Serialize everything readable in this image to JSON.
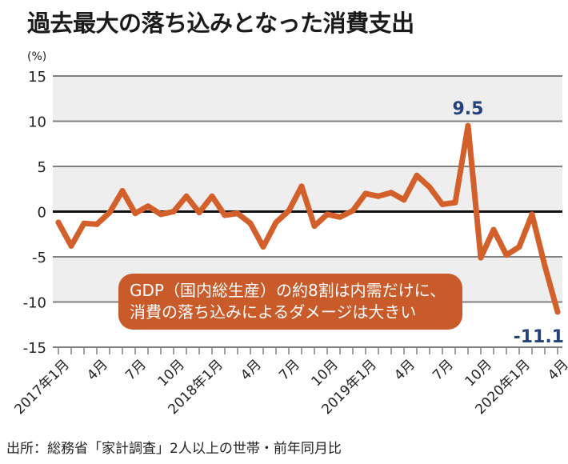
{
  "title": "過去最大の落ち込みとなった消費支出",
  "source": "出所：総務省「家計調査」2人以上の世帯・前年同月比",
  "colors": {
    "line": "#d3602a",
    "band": "#eeeeee",
    "grid": "#808080",
    "zero": "#111111",
    "annotation": "#23417a",
    "note_bg": "#c95a2a"
  },
  "chart_data": {
    "type": "line",
    "title": "過去最大の落ち込みとなった消費支出",
    "ylabel": "(%)",
    "xlabel": "",
    "ylim": [
      -15,
      15
    ],
    "yticks": [
      15,
      10,
      5,
      0,
      -5,
      -10,
      -15
    ],
    "ytick_labels": [
      "15",
      "10",
      "5",
      "0",
      "-5",
      "-10",
      "-15"
    ],
    "grid": true,
    "x": [
      "2017-01",
      "2017-02",
      "2017-03",
      "2017-04",
      "2017-05",
      "2017-06",
      "2017-07",
      "2017-08",
      "2017-09",
      "2017-10",
      "2017-11",
      "2017-12",
      "2018-01",
      "2018-02",
      "2018-03",
      "2018-04",
      "2018-05",
      "2018-06",
      "2018-07",
      "2018-08",
      "2018-09",
      "2018-10",
      "2018-11",
      "2018-12",
      "2019-01",
      "2019-02",
      "2019-03",
      "2019-04",
      "2019-05",
      "2019-06",
      "2019-07",
      "2019-08",
      "2019-09",
      "2019-10",
      "2019-11",
      "2019-12",
      "2020-01",
      "2020-02",
      "2020-03",
      "2020-04"
    ],
    "xtick_labels": [
      {
        "index": 0,
        "label": "2017年1月"
      },
      {
        "index": 3,
        "label": "4月"
      },
      {
        "index": 6,
        "label": "7月"
      },
      {
        "index": 9,
        "label": "10月"
      },
      {
        "index": 12,
        "label": "2018年1月"
      },
      {
        "index": 15,
        "label": "4月"
      },
      {
        "index": 18,
        "label": "7月"
      },
      {
        "index": 21,
        "label": "10月"
      },
      {
        "index": 24,
        "label": "2019年1月"
      },
      {
        "index": 27,
        "label": "4月"
      },
      {
        "index": 30,
        "label": "7月"
      },
      {
        "index": 33,
        "label": "10月"
      },
      {
        "index": 36,
        "label": "2020年1月"
      },
      {
        "index": 39,
        "label": "4月"
      }
    ],
    "series": [
      {
        "name": "消費支出 前年同月比",
        "values": [
          -1.2,
          -3.8,
          -1.3,
          -1.4,
          -0.1,
          2.3,
          -0.2,
          0.6,
          -0.3,
          0.0,
          1.7,
          -0.1,
          1.7,
          -0.4,
          -0.2,
          -1.3,
          -3.9,
          -1.2,
          0.1,
          2.8,
          -1.6,
          -0.3,
          -0.6,
          0.1,
          2.0,
          1.7,
          2.1,
          1.3,
          4.0,
          2.7,
          0.8,
          1.0,
          9.5,
          -5.1,
          -2.0,
          -4.8,
          -3.9,
          -0.3,
          -6.0,
          -11.1
        ]
      }
    ],
    "annotations": [
      {
        "index": 32,
        "label": "9.5",
        "position": "above"
      },
      {
        "index": 39,
        "label": "-11.1",
        "position": "below"
      }
    ],
    "note": {
      "line1": "GDP（国内総生産）の約8割は内需だけに、",
      "line2": "消費の落ち込みによるダメージは大きい"
    }
  }
}
